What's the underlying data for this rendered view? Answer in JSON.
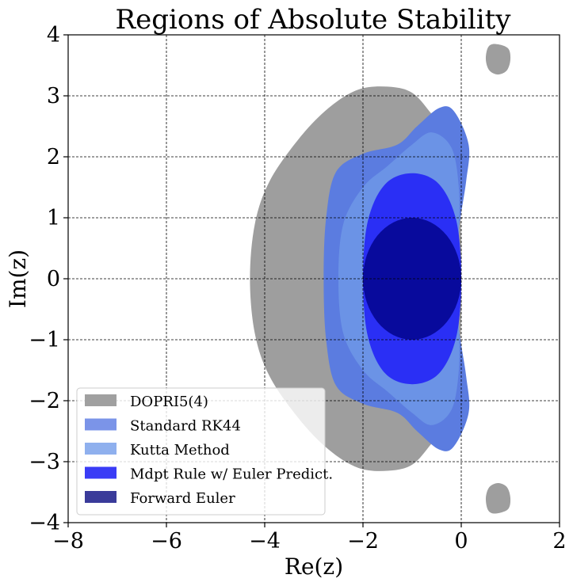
{
  "chart_data": {
    "type": "area",
    "title": "Regions of Absolute Stability",
    "xlabel": "Re(z)",
    "ylabel": "Im(z)",
    "xlim": [
      -8,
      2
    ],
    "ylim": [
      -4,
      4
    ],
    "xticks": [
      -8,
      -6,
      -4,
      -2,
      0,
      2
    ],
    "yticks": [
      -4,
      -3,
      -2,
      -1,
      0,
      1,
      2,
      3,
      4
    ],
    "xtick_labels": [
      "−8",
      "−6",
      "−4",
      "−2",
      "0",
      "2"
    ],
    "ytick_labels": [
      "−4",
      "−3",
      "−2",
      "−1",
      "0",
      "1",
      "2",
      "3",
      "4"
    ],
    "grid": true,
    "legend_position": "lower-left",
    "series": [
      {
        "name": "DOPRI5(4)",
        "color": "#9e9e9e",
        "regions": [
          [
            [
              -4.3,
              0
            ],
            [
              -4.2,
              0.9
            ],
            [
              -3.9,
              1.6
            ],
            [
              -3.3,
              2.3
            ],
            [
              -2.7,
              2.8
            ],
            [
              -2.1,
              3.1
            ],
            [
              -1.5,
              3.15
            ],
            [
              -1.0,
              3.05
            ],
            [
              -0.6,
              2.7
            ],
            [
              -0.2,
              2.3
            ],
            [
              -0.05,
              1.5
            ],
            [
              0.0,
              0.6
            ],
            [
              0.0,
              0
            ],
            [
              0.0,
              -0.6
            ],
            [
              -0.05,
              -1.5
            ],
            [
              -0.2,
              -2.3
            ],
            [
              -0.6,
              -2.7
            ],
            [
              -1.0,
              -3.05
            ],
            [
              -1.5,
              -3.15
            ],
            [
              -2.1,
              -3.1
            ],
            [
              -2.7,
              -2.8
            ],
            [
              -3.3,
              -2.3
            ],
            [
              -3.9,
              -1.6
            ],
            [
              -4.2,
              -0.9
            ]
          ],
          [
            [
              0.5,
              3.6
            ],
            [
              0.55,
              3.8
            ],
            [
              0.7,
              3.85
            ],
            [
              0.95,
              3.78
            ],
            [
              1.0,
              3.6
            ],
            [
              0.93,
              3.42
            ],
            [
              0.75,
              3.35
            ],
            [
              0.57,
              3.42
            ]
          ],
          [
            [
              0.5,
              -3.6
            ],
            [
              0.55,
              -3.8
            ],
            [
              0.7,
              -3.85
            ],
            [
              0.95,
              -3.78
            ],
            [
              1.0,
              -3.6
            ],
            [
              0.93,
              -3.42
            ],
            [
              0.75,
              -3.35
            ],
            [
              0.57,
              -3.42
            ]
          ]
        ]
      },
      {
        "name": "Standard RK44",
        "color": "#5b7ce0",
        "regions": [
          [
            [
              -2.8,
              0
            ],
            [
              -2.75,
              1.0
            ],
            [
              -2.55,
              1.75
            ],
            [
              -2.0,
              2.05
            ],
            [
              -1.3,
              2.2
            ],
            [
              -0.9,
              2.5
            ],
            [
              -0.45,
              2.8
            ],
            [
              -0.15,
              2.75
            ],
            [
              0.15,
              2.2
            ],
            [
              0.1,
              1.6
            ],
            [
              -0.05,
              0.8
            ],
            [
              -0.1,
              0
            ],
            [
              -0.05,
              -0.8
            ],
            [
              0.1,
              -1.6
            ],
            [
              0.15,
              -2.2
            ],
            [
              -0.15,
              -2.75
            ],
            [
              -0.45,
              -2.8
            ],
            [
              -0.9,
              -2.5
            ],
            [
              -1.3,
              -2.2
            ],
            [
              -2.0,
              -2.05
            ],
            [
              -2.55,
              -1.75
            ],
            [
              -2.75,
              -1.0
            ]
          ]
        ]
      },
      {
        "name": "Kutta Method",
        "color": "#6b93e6",
        "regions": [
          [
            [
              -2.5,
              0
            ],
            [
              -2.4,
              0.9
            ],
            [
              -2.0,
              1.5
            ],
            [
              -1.5,
              1.85
            ],
            [
              -1.0,
              2.2
            ],
            [
              -0.6,
              2.4
            ],
            [
              -0.2,
              2.15
            ],
            [
              -0.05,
              1.5
            ],
            [
              -0.05,
              0.7
            ],
            [
              -0.1,
              0
            ],
            [
              -0.05,
              -0.7
            ],
            [
              -0.05,
              -1.5
            ],
            [
              -0.2,
              -2.15
            ],
            [
              -0.6,
              -2.4
            ],
            [
              -1.0,
              -2.2
            ],
            [
              -1.5,
              -1.85
            ],
            [
              -2.0,
              -1.5
            ],
            [
              -2.4,
              -0.9
            ]
          ]
        ]
      },
      {
        "name": "Mdpt Rule w/ Euler Predict.",
        "color": "#2a2ff5",
        "regions": [
          [
            [
              -2.0,
              0
            ],
            [
              -1.9,
              0.95
            ],
            [
              -1.55,
              1.55
            ],
            [
              -1.0,
              1.73
            ],
            [
              -0.45,
              1.55
            ],
            [
              -0.1,
              0.95
            ],
            [
              0.0,
              0
            ],
            [
              -0.1,
              -0.95
            ],
            [
              -0.45,
              -1.55
            ],
            [
              -1.0,
              -1.73
            ],
            [
              -1.55,
              -1.55
            ],
            [
              -1.9,
              -0.95
            ]
          ]
        ]
      },
      {
        "name": "Forward Euler",
        "color": "#080a9c",
        "circle": {
          "center": [
            -1,
            0
          ],
          "radius": 1
        }
      }
    ],
    "legend_colors": [
      "#a0a0a0",
      "#7b94e8",
      "#8fb0ee",
      "#3a3cf6",
      "#3a3b9a"
    ]
  }
}
